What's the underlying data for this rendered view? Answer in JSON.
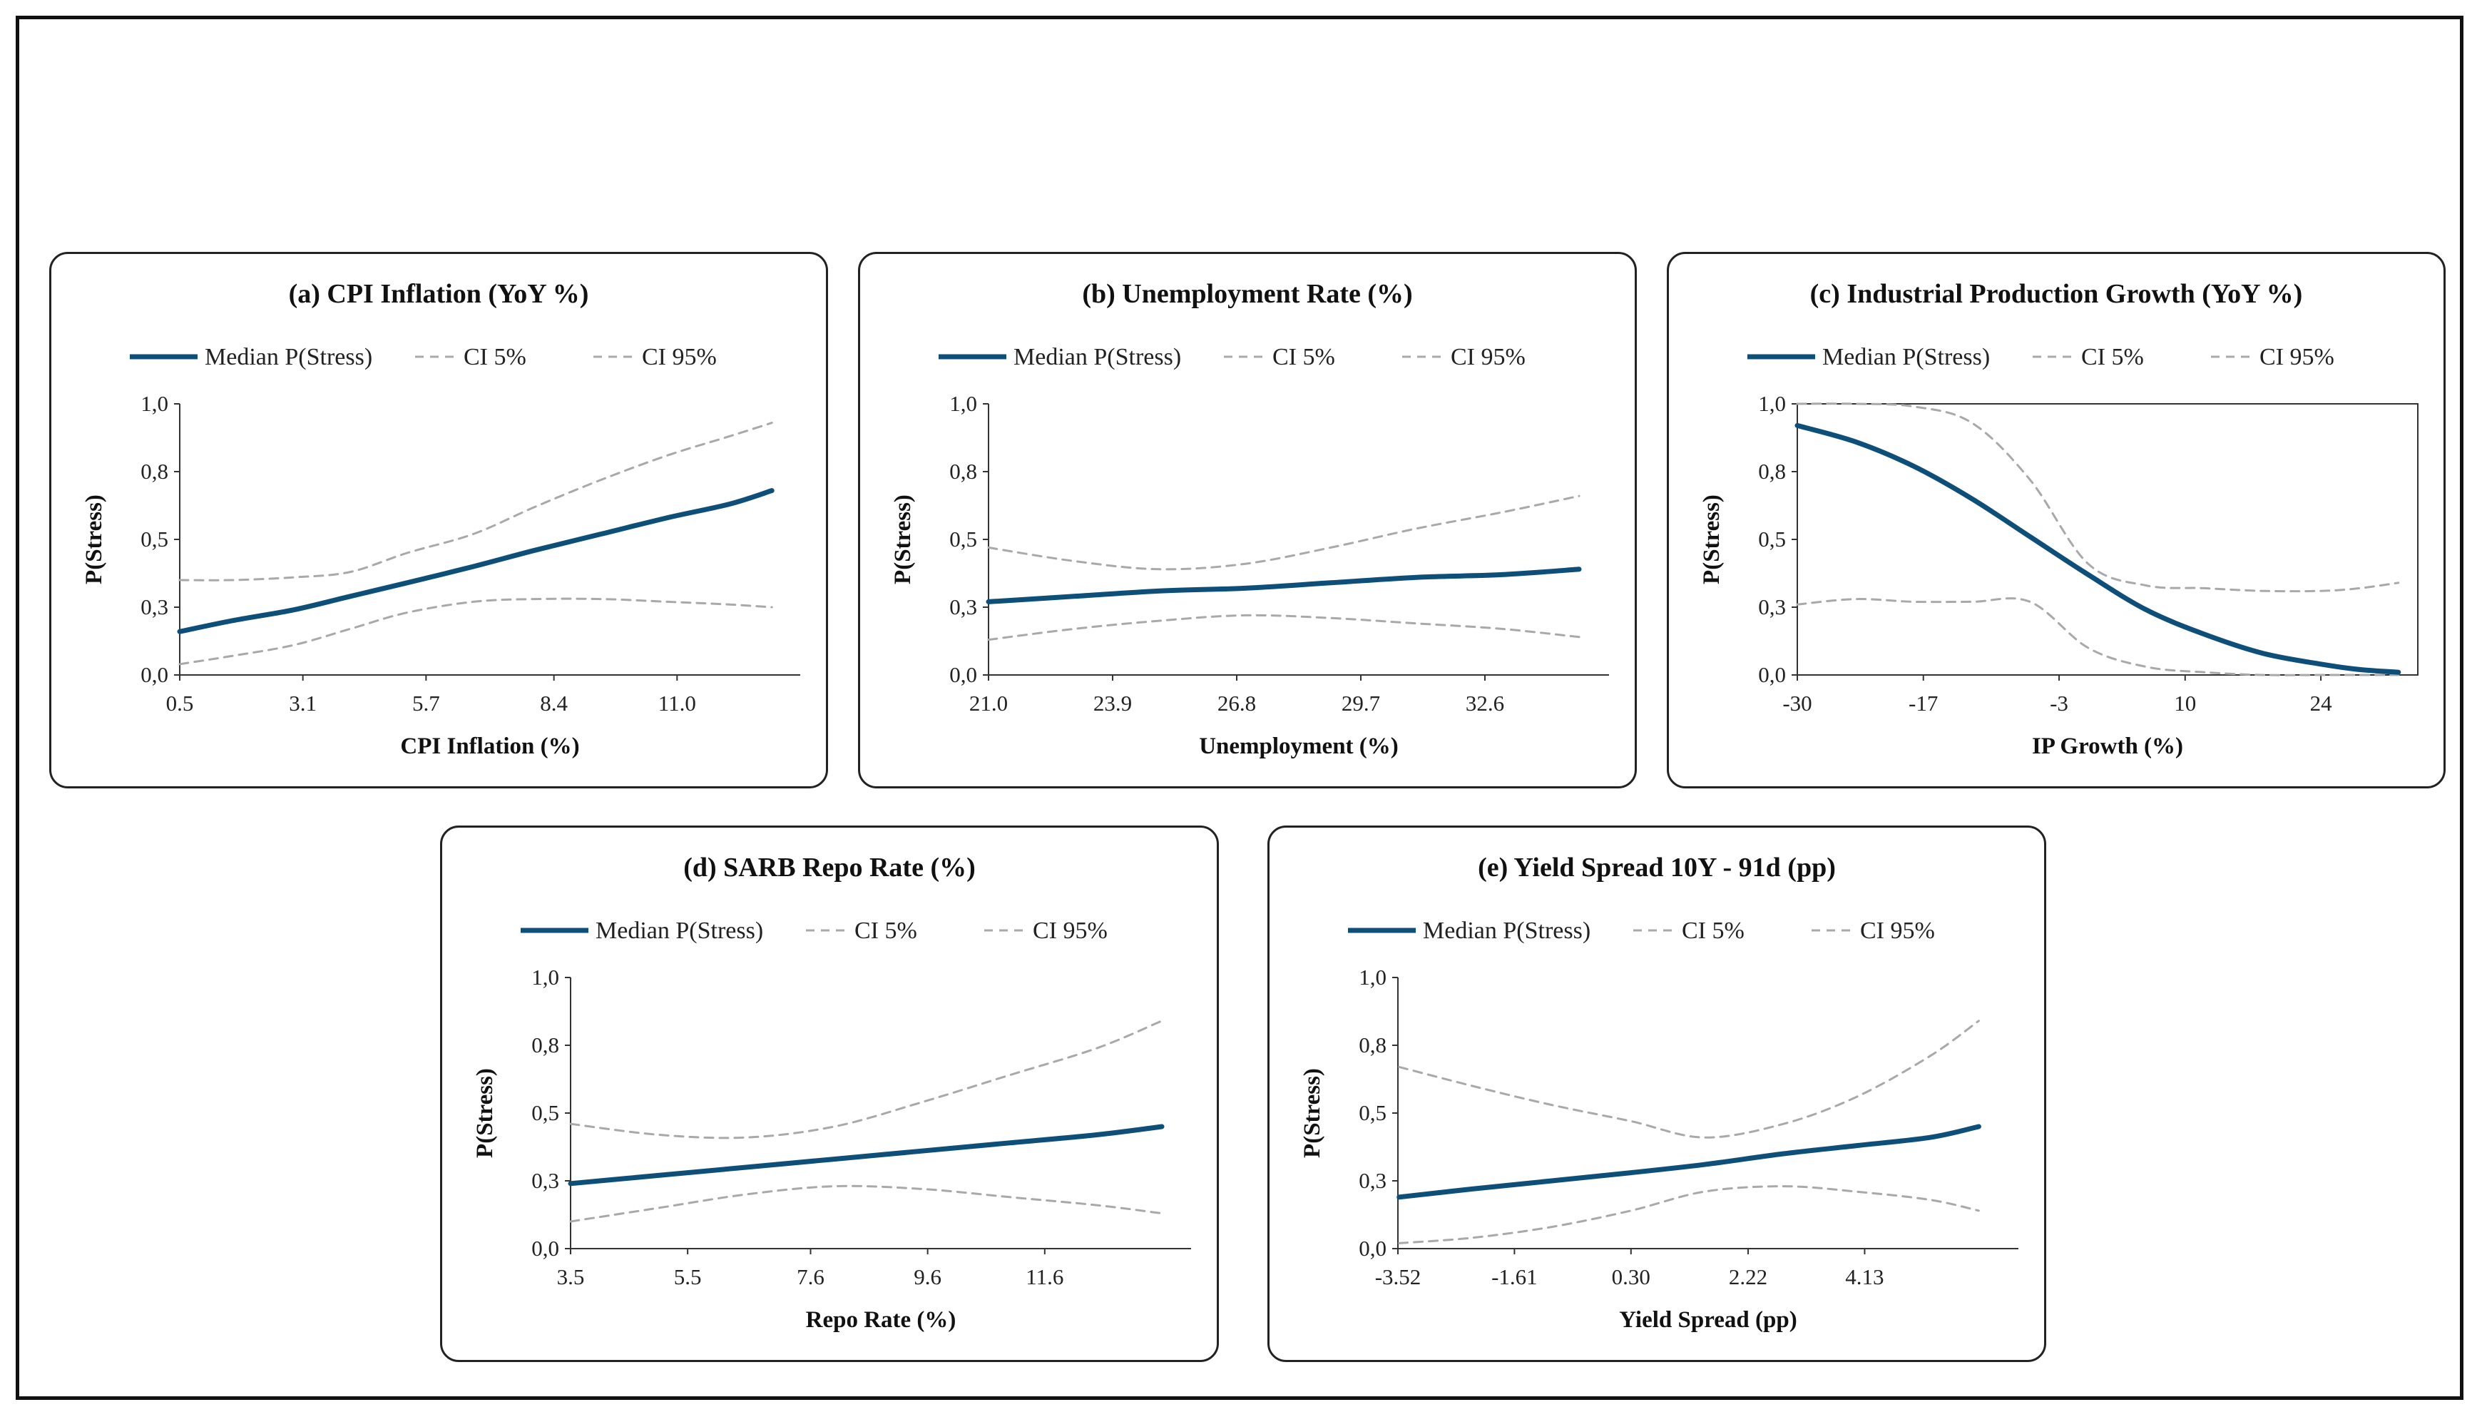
{
  "legend": {
    "median": "Median P(Stress)",
    "ci5": "CI 5%",
    "ci95": "CI 95%"
  },
  "colors": {
    "median": "#0e4f7a",
    "ci": "#a9a9a9",
    "axis": "#333333"
  },
  "chart_data": [
    {
      "type": "line",
      "title": "(a) CPI Inflation (YoY %)",
      "xlabel": "CPI Inflation (%)",
      "ylabel": "P(Stress)",
      "xlim": [
        0.5,
        13.6
      ],
      "ylim": [
        0,
        1.0
      ],
      "xticks": [
        "0.5",
        "3.1",
        "5.7",
        "8.4",
        "11.0"
      ],
      "xtick_values": [
        0.5,
        3.1,
        5.7,
        8.4,
        11.0
      ],
      "yticks": [
        "0,0",
        "0,3",
        "0,5",
        "0,8",
        "1,0"
      ],
      "ytick_values": [
        0,
        0.25,
        0.5,
        0.75,
        1.0
      ],
      "box": false,
      "x": [
        0.5,
        1.6,
        2.9,
        4.1,
        5.3,
        6.7,
        8.0,
        9.4,
        10.8,
        12.1,
        13.0
      ],
      "series": [
        {
          "name": "Median P(Stress)",
          "values": [
            0.16,
            0.2,
            0.24,
            0.29,
            0.34,
            0.4,
            0.46,
            0.52,
            0.58,
            0.63,
            0.68
          ]
        },
        {
          "name": "CI 5%",
          "values": [
            0.04,
            0.07,
            0.11,
            0.17,
            0.23,
            0.27,
            0.28,
            0.28,
            0.27,
            0.26,
            0.25
          ]
        },
        {
          "name": "CI 95%",
          "values": [
            0.35,
            0.35,
            0.36,
            0.38,
            0.45,
            0.52,
            0.62,
            0.72,
            0.81,
            0.88,
            0.93
          ]
        }
      ]
    },
    {
      "type": "line",
      "title": "(b) Unemployment Rate (%)",
      "xlabel": "Unemployment (%)",
      "ylabel": "P(Stress)",
      "xlim": [
        21.0,
        35.5
      ],
      "ylim": [
        0,
        1.0
      ],
      "xticks": [
        "21.0",
        "23.9",
        "26.8",
        "29.7",
        "32.6"
      ],
      "xtick_values": [
        21.0,
        23.9,
        26.8,
        29.7,
        32.6
      ],
      "yticks": [
        "0,0",
        "0,3",
        "0,5",
        "0,8",
        "1,0"
      ],
      "ytick_values": [
        0,
        0.25,
        0.5,
        0.75,
        1.0
      ],
      "box": false,
      "x": [
        21.0,
        23.0,
        25.0,
        27.0,
        29.0,
        31.0,
        33.0,
        34.8
      ],
      "series": [
        {
          "name": "Median P(Stress)",
          "values": [
            0.27,
            0.29,
            0.31,
            0.32,
            0.34,
            0.36,
            0.37,
            0.39
          ]
        },
        {
          "name": "CI 5%",
          "values": [
            0.13,
            0.17,
            0.2,
            0.22,
            0.21,
            0.19,
            0.17,
            0.14
          ]
        },
        {
          "name": "CI 95%",
          "values": [
            0.47,
            0.42,
            0.39,
            0.41,
            0.47,
            0.54,
            0.6,
            0.66
          ]
        }
      ]
    },
    {
      "type": "line",
      "title": "(c) Industrial Production Growth (YoY %)",
      "xlabel": "IP Growth (%)",
      "ylabel": "P(Stress)",
      "xlim": [
        -30,
        34
      ],
      "ylim": [
        0,
        1.0
      ],
      "xticks": [
        "-30",
        "-17",
        "-3",
        "10",
        "24"
      ],
      "xtick_values": [
        -30,
        -17,
        -3,
        10,
        24
      ],
      "yticks": [
        "0,0",
        "0,3",
        "0,5",
        "0,8",
        "1,0"
      ],
      "ytick_values": [
        0,
        0.25,
        0.5,
        0.75,
        1.0
      ],
      "box": true,
      "x": [
        -30,
        -24,
        -18,
        -12,
        -6,
        0,
        6,
        12,
        18,
        24,
        28,
        32
      ],
      "series": [
        {
          "name": "Median P(Stress)",
          "values": [
            0.92,
            0.86,
            0.77,
            0.65,
            0.51,
            0.37,
            0.24,
            0.15,
            0.08,
            0.04,
            0.02,
            0.01
          ]
        },
        {
          "name": "CI 5%",
          "values": [
            0.26,
            0.28,
            0.27,
            0.27,
            0.27,
            0.1,
            0.03,
            0.01,
            0.0,
            0.0,
            0.0,
            0.0
          ]
        },
        {
          "name": "CI 95%",
          "values": [
            1.0,
            1.0,
            0.99,
            0.93,
            0.72,
            0.41,
            0.33,
            0.32,
            0.31,
            0.31,
            0.32,
            0.34
          ]
        }
      ]
    },
    {
      "type": "line",
      "title": "(d) SARB Repo Rate (%)",
      "xlabel": "Repo Rate (%)",
      "ylabel": "P(Stress)",
      "xlim": [
        3.5,
        14.1
      ],
      "ylim": [
        0,
        1.0
      ],
      "xticks": [
        "3.5",
        "5.5",
        "7.6",
        "9.6",
        "11.6"
      ],
      "xtick_values": [
        3.5,
        5.5,
        7.6,
        9.6,
        11.6
      ],
      "yticks": [
        "0,0",
        "0,3",
        "0,5",
        "0,8",
        "1,0"
      ],
      "ytick_values": [
        0,
        0.25,
        0.5,
        0.75,
        1.0
      ],
      "box": false,
      "x": [
        3.5,
        5.0,
        6.5,
        8.0,
        9.5,
        11.0,
        12.5,
        13.6
      ],
      "series": [
        {
          "name": "Median P(Stress)",
          "values": [
            0.24,
            0.27,
            0.3,
            0.33,
            0.36,
            0.39,
            0.42,
            0.45
          ]
        },
        {
          "name": "CI 5%",
          "values": [
            0.1,
            0.15,
            0.2,
            0.23,
            0.22,
            0.19,
            0.16,
            0.13
          ]
        },
        {
          "name": "CI 95%",
          "values": [
            0.46,
            0.42,
            0.41,
            0.45,
            0.54,
            0.64,
            0.74,
            0.84
          ]
        }
      ]
    },
    {
      "type": "line",
      "title": "(e) Yield Spread 10Y - 91d (pp)",
      "xlabel": "Yield Spread (pp)",
      "ylabel": "P(Stress)",
      "xlim": [
        -3.52,
        6.65
      ],
      "ylim": [
        0,
        1.0
      ],
      "xticks": [
        "-3.52",
        "-1.61",
        "0.30",
        "2.22",
        "4.13"
      ],
      "xtick_values": [
        -3.52,
        -1.61,
        0.3,
        2.22,
        4.13
      ],
      "yticks": [
        "0,0",
        "0,3",
        "0,5",
        "0,8",
        "1,0"
      ],
      "ytick_values": [
        0,
        0.25,
        0.5,
        0.75,
        1.0
      ],
      "box": false,
      "x": [
        -3.5,
        -2.3,
        -1.0,
        0.3,
        1.5,
        2.8,
        4.0,
        5.2,
        6.0
      ],
      "series": [
        {
          "name": "Median P(Stress)",
          "values": [
            0.19,
            0.22,
            0.25,
            0.28,
            0.31,
            0.35,
            0.38,
            0.41,
            0.45
          ]
        },
        {
          "name": "CI 5%",
          "values": [
            0.02,
            0.04,
            0.08,
            0.14,
            0.21,
            0.23,
            0.21,
            0.18,
            0.14
          ]
        },
        {
          "name": "CI 95%",
          "values": [
            0.67,
            0.6,
            0.53,
            0.47,
            0.41,
            0.46,
            0.56,
            0.71,
            0.84
          ]
        }
      ]
    }
  ]
}
